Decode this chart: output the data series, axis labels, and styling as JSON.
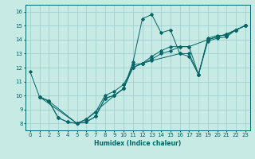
{
  "xlabel": "Humidex (Indice chaleur)",
  "xlim": [
    -0.5,
    23.5
  ],
  "ylim": [
    7.5,
    16.5
  ],
  "xticks": [
    0,
    1,
    2,
    3,
    4,
    5,
    6,
    7,
    8,
    9,
    10,
    11,
    12,
    13,
    14,
    15,
    16,
    17,
    18,
    19,
    20,
    21,
    22,
    23
  ],
  "yticks": [
    8,
    9,
    10,
    11,
    12,
    13,
    14,
    15,
    16
  ],
  "background_color": "#c8eae4",
  "grid_color": "#99cccc",
  "line_color": "#006666",
  "lines": [
    {
      "x": [
        0,
        1,
        2,
        3,
        4,
        5,
        6,
        7,
        8,
        9,
        10,
        11,
        12,
        13,
        14,
        15,
        16,
        17,
        18,
        19,
        20,
        21,
        22,
        23
      ],
      "y": [
        11.7,
        9.9,
        9.6,
        8.4,
        8.1,
        8.0,
        8.1,
        8.5,
        9.8,
        10.0,
        10.5,
        12.4,
        15.5,
        15.8,
        14.5,
        14.7,
        13.0,
        12.8,
        11.5,
        14.1,
        14.3,
        14.3,
        14.7,
        15.0
      ]
    },
    {
      "x": [
        1,
        2,
        3,
        4,
        5,
        6,
        7,
        8,
        9,
        10,
        11,
        12,
        13,
        16,
        17,
        18,
        19,
        20,
        21,
        22,
        23
      ],
      "y": [
        9.9,
        9.6,
        8.4,
        8.1,
        8.0,
        8.1,
        8.5,
        9.8,
        10.0,
        10.5,
        12.2,
        12.3,
        12.5,
        13.0,
        13.0,
        11.5,
        13.9,
        14.1,
        14.2,
        14.7,
        15.0
      ]
    },
    {
      "x": [
        1,
        2,
        5,
        6,
        7,
        8,
        9,
        10,
        11,
        12,
        13,
        14,
        15,
        16,
        17,
        19,
        20,
        21,
        22,
        23
      ],
      "y": [
        9.9,
        9.6,
        8.0,
        8.3,
        8.8,
        10.0,
        10.3,
        10.8,
        12.0,
        12.3,
        12.6,
        13.0,
        13.2,
        13.5,
        13.5,
        14.0,
        14.2,
        14.4,
        14.7,
        15.0
      ]
    },
    {
      "x": [
        1,
        5,
        6,
        9,
        10,
        11,
        12,
        13,
        14,
        15,
        16,
        17,
        18,
        19,
        20,
        21,
        22,
        23
      ],
      "y": [
        9.9,
        8.0,
        8.3,
        10.0,
        10.5,
        12.0,
        12.3,
        12.8,
        13.2,
        13.5,
        13.5,
        13.5,
        11.5,
        14.0,
        14.2,
        14.4,
        14.7,
        15.0
      ]
    }
  ]
}
